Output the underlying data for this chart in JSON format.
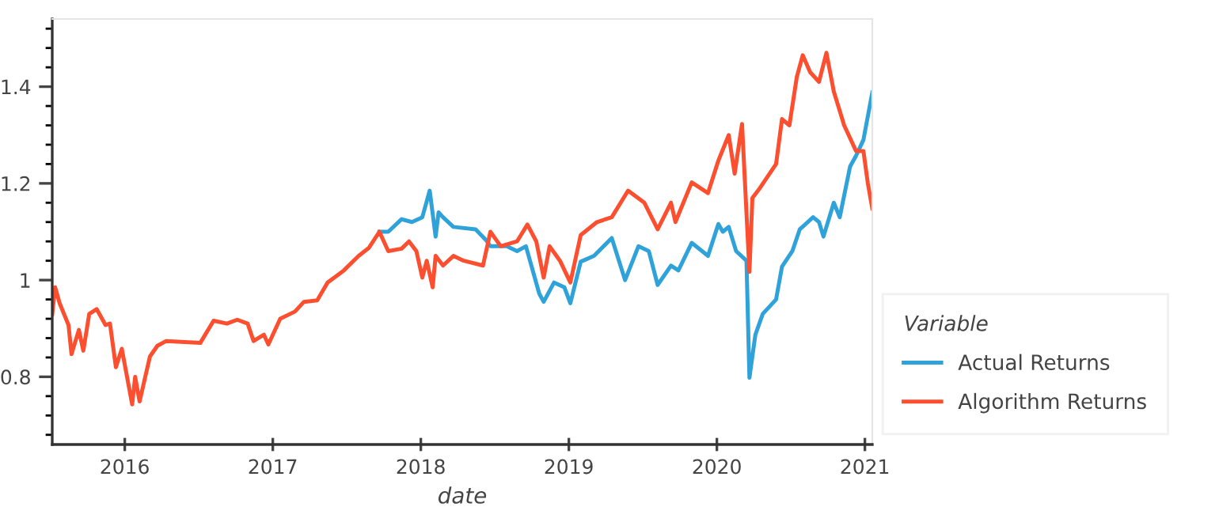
{
  "chart_data": {
    "type": "line",
    "xlabel": "date",
    "legend_title": "Variable",
    "legend": "bottom right",
    "grid": false,
    "marker": "none",
    "line_style": "solid",
    "xlim": [
      2015.51,
      2021.05
    ],
    "xticks": [
      2016,
      2017,
      2018,
      2019,
      2020,
      2021
    ],
    "ylim": [
      0.66,
      1.54
    ],
    "yticks": [
      {
        "value": 0.68,
        "label": null
      },
      {
        "value": 0.72,
        "label": null
      },
      {
        "value": 0.76,
        "label": null
      },
      0.8,
      {
        "value": 0.84,
        "label": null
      },
      {
        "value": 0.88,
        "label": null
      },
      {
        "value": 0.92,
        "label": null
      },
      {
        "value": 0.96,
        "label": null
      },
      1,
      {
        "value": 1.04,
        "label": null
      },
      {
        "value": 1.08,
        "label": null
      },
      {
        "value": 1.12,
        "label": null
      },
      {
        "value": 1.16,
        "label": null
      },
      1.2,
      {
        "value": 1.24,
        "label": null
      },
      {
        "value": 1.28,
        "label": null
      },
      {
        "value": 1.32,
        "label": null
      },
      {
        "value": 1.36,
        "label": null
      },
      1.4,
      {
        "value": 1.44,
        "label": null
      },
      {
        "value": 1.48,
        "label": null
      },
      {
        "value": 1.52,
        "label": null
      }
    ],
    "series": [
      {
        "name": "Actual Returns",
        "color": "#30a2da",
        "x": [
          2017.72,
          2017.78,
          2017.87,
          2017.94,
          2018.01,
          2018.06,
          2018.1,
          2018.12,
          2018.15,
          2018.22,
          2018.37,
          2018.44,
          2018.47,
          2018.58,
          2018.65,
          2018.71,
          2018.8,
          2018.83,
          2018.9,
          2018.97,
          2019.01,
          2019.08,
          2019.17,
          2019.29,
          2019.38,
          2019.47,
          2019.54,
          2019.6,
          2019.69,
          2019.74,
          2019.83,
          2019.94,
          2020.01,
          2020.04,
          2020.08,
          2020.13,
          2020.2,
          2020.22,
          2020.26,
          2020.31,
          2020.4,
          2020.44,
          2020.51,
          2020.56,
          2020.65,
          2020.69,
          2020.72,
          2020.79,
          2020.83,
          2020.9,
          2020.94,
          2020.99,
          2021.05
        ],
        "values": [
          1.1,
          1.1,
          1.126,
          1.12,
          1.13,
          1.185,
          1.09,
          1.14,
          1.13,
          1.11,
          1.105,
          1.083,
          1.07,
          1.07,
          1.06,
          1.07,
          0.972,
          0.955,
          0.995,
          0.985,
          0.952,
          1.038,
          1.05,
          1.087,
          1.0,
          1.07,
          1.06,
          0.99,
          1.03,
          1.02,
          1.077,
          1.05,
          1.116,
          1.1,
          1.11,
          1.06,
          1.04,
          0.798,
          0.887,
          0.93,
          0.96,
          1.028,
          1.06,
          1.105,
          1.13,
          1.12,
          1.09,
          1.16,
          1.13,
          1.235,
          1.257,
          1.29,
          1.388
        ]
      },
      {
        "name": "Algorithm Returns",
        "color": "#fc4f30",
        "x": [
          2015.51,
          2015.53,
          2015.56,
          2015.62,
          2015.64,
          2015.69,
          2015.72,
          2015.76,
          2015.81,
          2015.87,
          2015.9,
          2015.94,
          2015.98,
          2016.05,
          2016.07,
          2016.1,
          2016.17,
          2016.22,
          2016.28,
          2016.51,
          2016.6,
          2016.69,
          2016.76,
          2016.83,
          2016.87,
          2016.94,
          2016.97,
          2017.05,
          2017.15,
          2017.21,
          2017.3,
          2017.37,
          2017.48,
          2017.58,
          2017.65,
          2017.72,
          2017.78,
          2017.87,
          2017.92,
          2017.97,
          2018.01,
          2018.04,
          2018.08,
          2018.1,
          2018.15,
          2018.22,
          2018.29,
          2018.42,
          2018.47,
          2018.54,
          2018.65,
          2018.72,
          2018.78,
          2018.83,
          2018.87,
          2018.94,
          2019.01,
          2019.08,
          2019.19,
          2019.29,
          2019.4,
          2019.51,
          2019.6,
          2019.69,
          2019.72,
          2019.83,
          2019.94,
          2020.01,
          2020.08,
          2020.12,
          2020.17,
          2020.22,
          2020.24,
          2020.29,
          2020.4,
          2020.44,
          2020.49,
          2020.54,
          2020.58,
          2020.63,
          2020.69,
          2020.74,
          2020.79,
          2020.86,
          2020.94,
          2020.99,
          2021.02,
          2021.05
        ],
        "values": [
          0.93,
          0.985,
          0.952,
          0.907,
          0.847,
          0.897,
          0.854,
          0.93,
          0.94,
          0.907,
          0.91,
          0.82,
          0.858,
          0.743,
          0.8,
          0.749,
          0.842,
          0.864,
          0.874,
          0.87,
          0.916,
          0.91,
          0.918,
          0.91,
          0.874,
          0.887,
          0.867,
          0.92,
          0.935,
          0.955,
          0.958,
          0.995,
          1.02,
          1.05,
          1.067,
          1.1,
          1.06,
          1.065,
          1.08,
          1.06,
          1.005,
          1.04,
          0.985,
          1.05,
          1.03,
          1.05,
          1.04,
          1.03,
          1.1,
          1.07,
          1.08,
          1.115,
          1.08,
          1.005,
          1.07,
          1.04,
          0.995,
          1.093,
          1.12,
          1.13,
          1.185,
          1.16,
          1.105,
          1.16,
          1.12,
          1.202,
          1.18,
          1.247,
          1.3,
          1.22,
          1.323,
          1.017,
          1.17,
          1.19,
          1.24,
          1.333,
          1.32,
          1.42,
          1.465,
          1.43,
          1.41,
          1.47,
          1.39,
          1.32,
          1.267,
          1.267,
          1.2,
          1.148
        ]
      }
    ]
  }
}
